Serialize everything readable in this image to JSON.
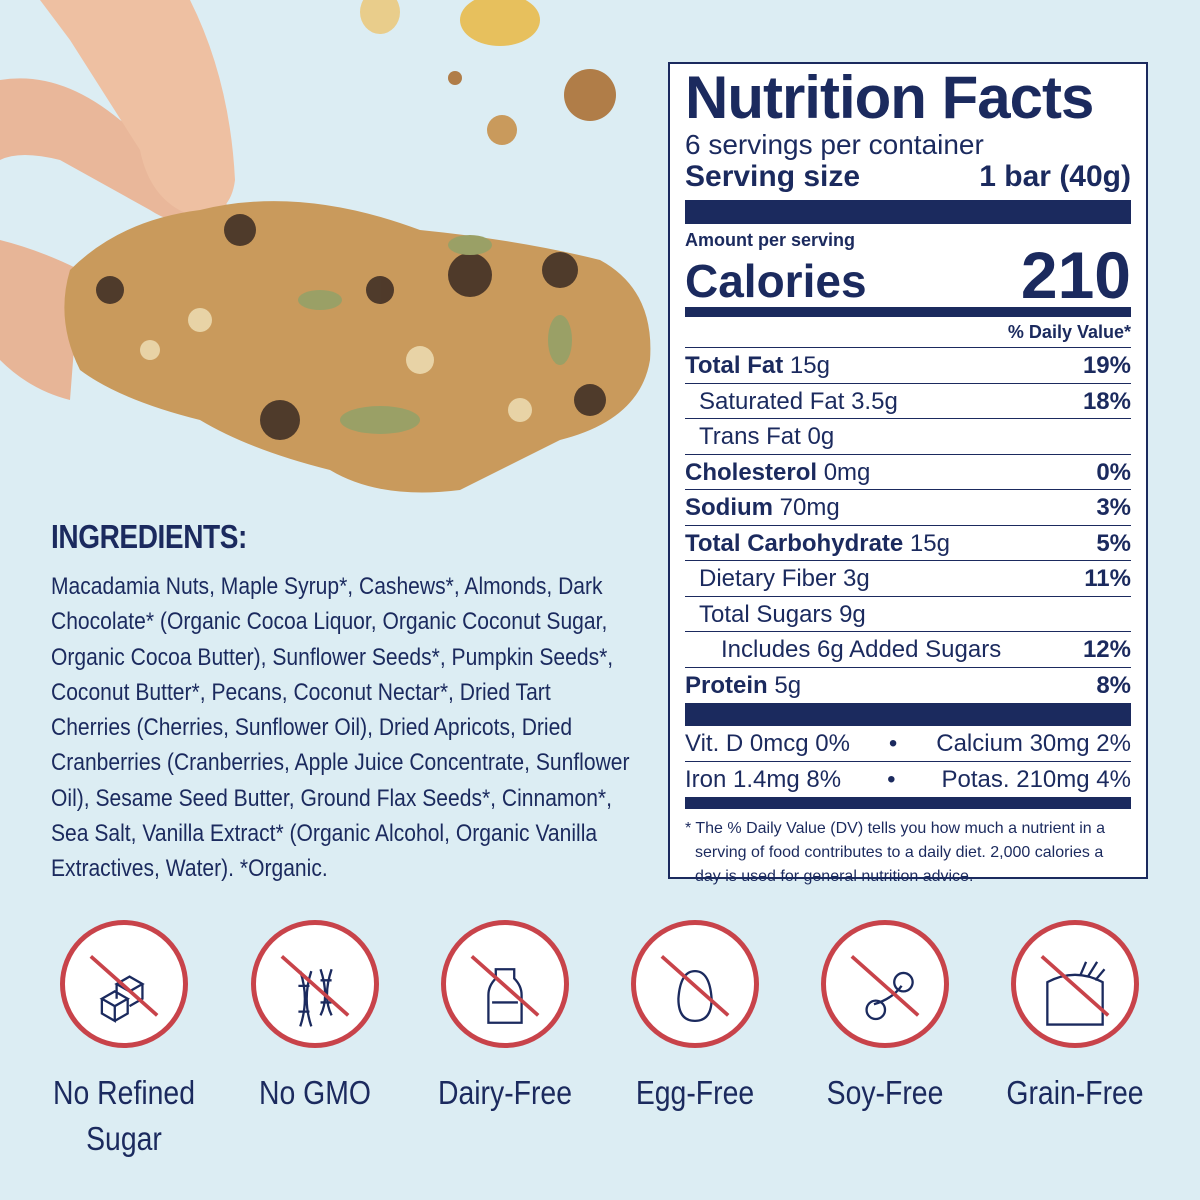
{
  "nutrition": {
    "title": "Nutrition Facts",
    "servings": "6 servings per container",
    "serving_size_label": "Serving size",
    "serving_size_value": "1 bar (40g)",
    "amount_per_serving": "Amount per serving",
    "calories_label": "Calories",
    "calories_value": "210",
    "dv_header": "% Daily Value*",
    "rows": [
      {
        "name": "Total Fat",
        "amount": "15g",
        "pct": "19%"
      },
      {
        "name": "Saturated Fat 3.5g",
        "amount": "",
        "pct": "18%"
      },
      {
        "name": "Trans Fat 0g",
        "amount": "",
        "pct": ""
      },
      {
        "name": "Cholesterol",
        "amount": "0mg",
        "pct": "0%"
      },
      {
        "name": "Sodium",
        "amount": "70mg",
        "pct": "3%"
      },
      {
        "name": "Total Carbohydrate",
        "amount": "15g",
        "pct": "5%"
      },
      {
        "name": "Dietary Fiber 3g",
        "amount": "",
        "pct": "11%"
      },
      {
        "name": "Total Sugars 9g",
        "amount": "",
        "pct": ""
      },
      {
        "name": "Includes 6g Added Sugars",
        "amount": "",
        "pct": "12%"
      },
      {
        "name": "Protein",
        "amount": "5g",
        "pct": "8%"
      }
    ],
    "vitamins": [
      {
        "left": "Vit. D 0mcg 0%",
        "right": "Calcium 30mg 2%"
      },
      {
        "left": "Iron 1.4mg 8%",
        "right": "Potas. 210mg 4%"
      }
    ],
    "bullet": "•",
    "footnote": "* The % Daily Value (DV) tells you how much a nutrient in a serving of food contributes to a daily diet. 2,000 calories a day is used for general nutrition advice."
  },
  "ingredients": {
    "heading": "INGREDIENTS:",
    "text": "Macadamia Nuts, Maple Syrup*, Cashews*, Almonds, Dark Chocolate* (Organic Cocoa Liquor, Organic Coconut Sugar, Organic Cocoa Butter), Sunflower Seeds*, Pumpkin Seeds*, Coconut Butter*, Pecans, Coconut Nectar*, Dried Tart Cherries (Cherries, Sunflower Oil), Dried Apricots, Dried Cranberries (Cranberries, Apple Juice Concentrate, Sunflower Oil), Sesame Seed Butter, Ground Flax Seeds*, Cinnamon*, Sea Salt, Vanilla Extract* (Organic Alcohol, Organic Vanilla Extractives, Water). *Organic."
  },
  "badges": [
    {
      "icon": "sugar-cubes-icon",
      "label": "No Refined Sugar"
    },
    {
      "icon": "dna-icon",
      "label": "No GMO"
    },
    {
      "icon": "milk-bottle-icon",
      "label": "Dairy-Free"
    },
    {
      "icon": "egg-icon",
      "label": "Egg-Free"
    },
    {
      "icon": "soybean-icon",
      "label": "Soy-Free"
    },
    {
      "icon": "grain-sack-icon",
      "label": "Grain-Free"
    }
  ],
  "colors": {
    "background": "#dcedf3",
    "navy": "#1b2a5e",
    "badge_red": "#c8434a"
  }
}
